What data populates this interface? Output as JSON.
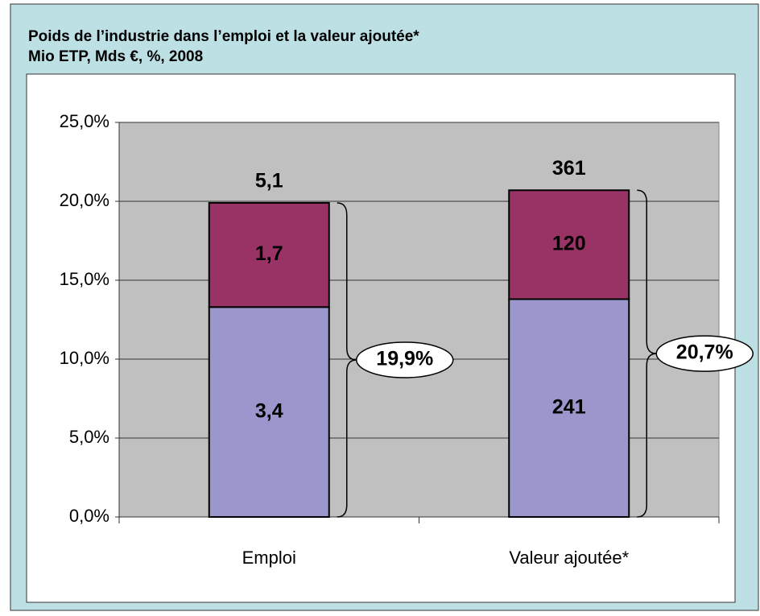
{
  "chart_data": {
    "type": "bar",
    "stacked": true,
    "title": "Poids de l’industrie dans l’emploi et la valeur ajoutée*",
    "subtitle": "Mio ETP, Mds €, %, 2008",
    "categories": [
      "Emploi",
      "Valeur ajoutée*"
    ],
    "series": [
      {
        "color": "#9b97cc",
        "values": [
          13.3,
          13.8
        ],
        "labels": [
          "3,4",
          "241"
        ]
      },
      {
        "color": "#993366",
        "values": [
          6.6,
          6.9
        ],
        "labels": [
          "1,7",
          "120"
        ]
      }
    ],
    "top_labels": [
      "5,1",
      "361"
    ],
    "totals": {
      "values": [
        19.9,
        20.7
      ],
      "labels": [
        "19,9%",
        "20,7%"
      ]
    },
    "ylim": [
      0,
      25
    ],
    "yticks": [
      {
        "value": 0,
        "label": "0,0%"
      },
      {
        "value": 5,
        "label": "5,0%"
      },
      {
        "value": 10,
        "label": "10,0%"
      },
      {
        "value": 15,
        "label": "15,0%"
      },
      {
        "value": 20,
        "label": "20,0%"
      },
      {
        "value": 25,
        "label": "25,0%"
      }
    ],
    "grid": true
  }
}
